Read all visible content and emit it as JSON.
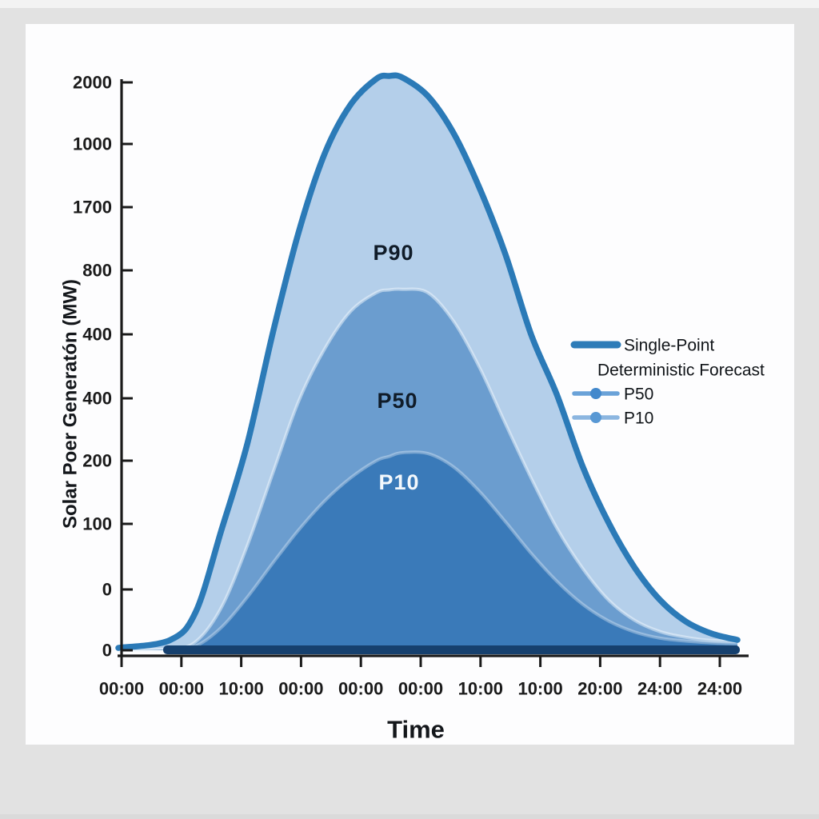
{
  "page": {
    "background_color": "#e2e2e2",
    "card_background_color": "#fdfdfe"
  },
  "chart_data": {
    "type": "area",
    "title": "",
    "xlabel": "Time",
    "ylabel": "Solar Poer Generatón (MW)",
    "x_tick_labels": [
      "00:00",
      "00:00",
      "10:00",
      "00:00",
      "00:00",
      "00:00",
      "10:00",
      "10:00",
      "20:00",
      "24:00",
      "24:00"
    ],
    "y_tick_labels": [
      "2000",
      "1000",
      "1700",
      "800",
      "400",
      "400",
      "200",
      "100",
      "0",
      "0"
    ],
    "ylim": [
      0,
      2000
    ],
    "xlim_hours": [
      0,
      24
    ],
    "grid": false,
    "legend_position": "right-inside",
    "x_hours": [
      0,
      2,
      3,
      4,
      5,
      6,
      7,
      8,
      9,
      10,
      10.5,
      11,
      12,
      13,
      14,
      15,
      16,
      17,
      18,
      19,
      20,
      21,
      22,
      23,
      24
    ],
    "series": [
      {
        "name": "P90",
        "fill": "#b4cfea",
        "values": [
          8,
          35,
          134,
          420,
          720,
          1110,
          1460,
          1730,
          1900,
          1990,
          2000,
          1995,
          1930,
          1800,
          1610,
          1380,
          1100,
          890,
          640,
          445,
          290,
          175,
          100,
          58,
          36
        ]
      },
      {
        "name": "P50",
        "fill": "#6b9dcf",
        "edge_highlight": "rgba(240,247,253,0.5)",
        "values": [
          0,
          5,
          30,
          150,
          365,
          620,
          870,
          1050,
          1180,
          1245,
          1255,
          1257,
          1245,
          1145,
          985,
          790,
          600,
          425,
          285,
          175,
          105,
          65,
          45,
          34,
          31
        ]
      },
      {
        "name": "P10",
        "fill": "#3a7ab9",
        "edge_highlight": "rgba(240,247,253,0.35)",
        "values": [
          0,
          3,
          15,
          80,
          185,
          305,
          420,
          520,
          600,
          660,
          675,
          688,
          685,
          638,
          553,
          448,
          338,
          240,
          160,
          102,
          64,
          42,
          32,
          26,
          22
        ]
      }
    ],
    "deterministic_line_color": "#2b7ab7",
    "baseline_strip_color": "#16406e",
    "axis_color": "#1a1a1a",
    "area_labels": {
      "p90": "P90",
      "p50": "P50",
      "p10": "P10"
    },
    "legend": {
      "item1_line1": "Single-Point",
      "item1_line2": "Deterministic Forecast",
      "item1_color": "#2e7cb8",
      "item2_label": "P50",
      "item2_line_color": "#6aa2d8",
      "item2_dot_color": "#4288cc",
      "item3_label": "P10",
      "item3_line_color": "#8cb6e0",
      "item3_dot_color": "#5898d4"
    }
  }
}
